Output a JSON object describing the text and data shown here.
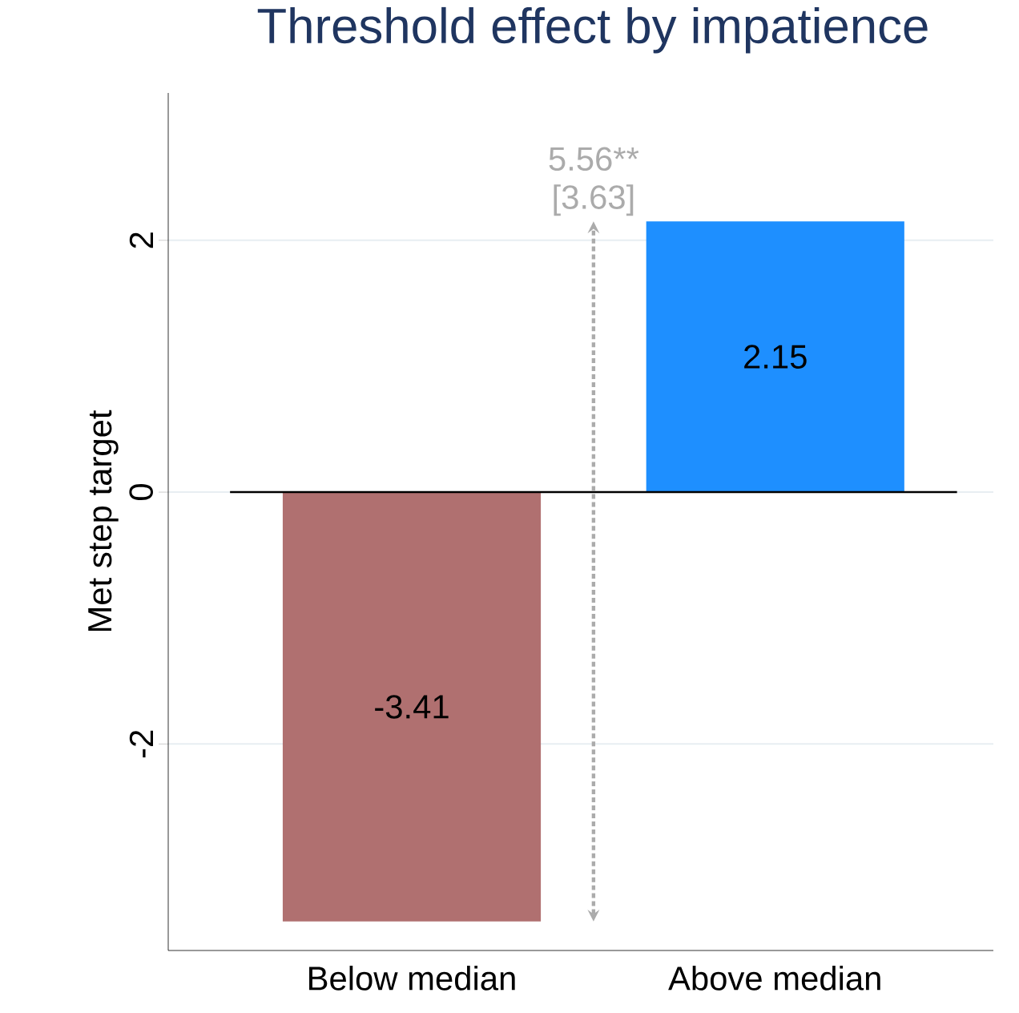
{
  "chart_data": {
    "type": "bar",
    "title": "Threshold effect by impatience",
    "ylabel": "Met step target",
    "categories": [
      "Below median",
      "Above median"
    ],
    "values": [
      -3.41,
      2.15
    ],
    "colors": [
      "#b07070",
      "#1e8fff"
    ],
    "data_labels": true,
    "ylim": [
      -3.64,
      3.17
    ],
    "yticks": [
      -2,
      0,
      2
    ],
    "grid": "y",
    "ref_lines": [
      {
        "axis": "y",
        "value": 0,
        "color": "#000000"
      }
    ],
    "annotations": [
      "5.56**",
      "[3.63]"
    ]
  }
}
